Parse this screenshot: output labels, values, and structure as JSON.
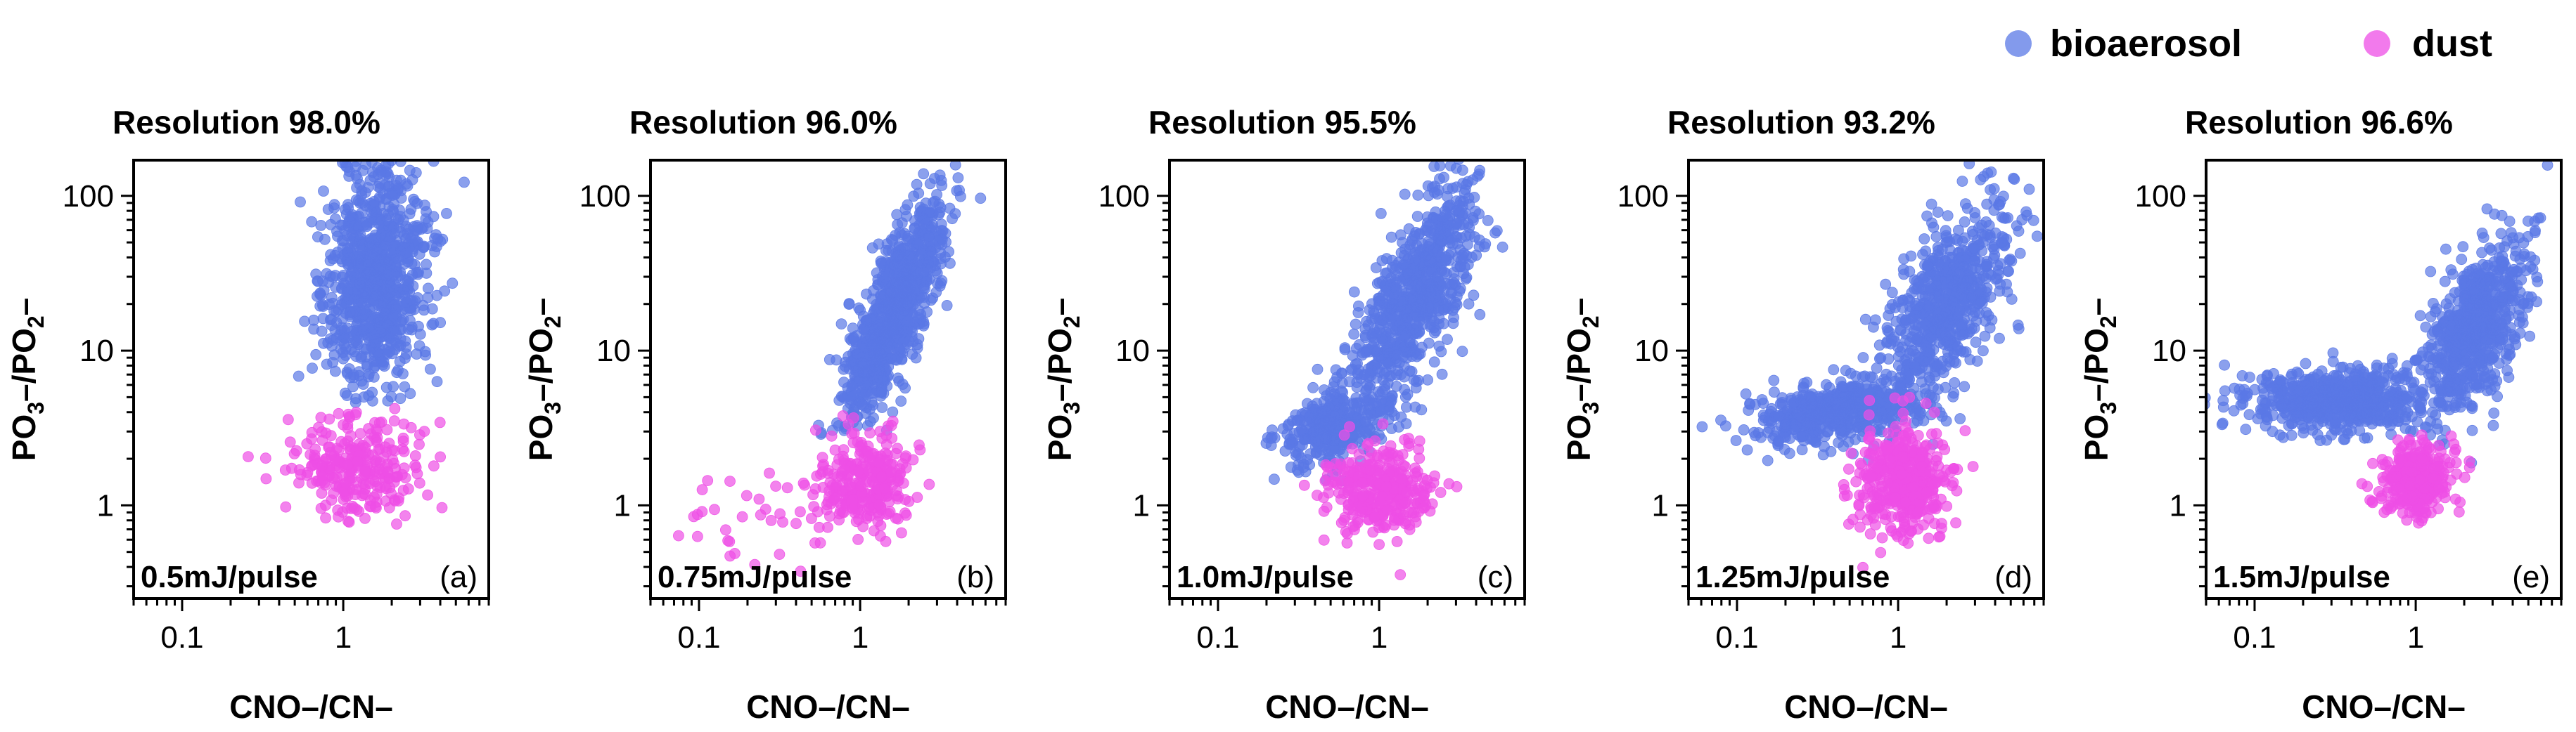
{
  "legend": {
    "items": [
      {
        "label": "bioaerosol",
        "color": "#5a78e6"
      },
      {
        "label": "dust",
        "color": "#ee4ee6"
      }
    ]
  },
  "chart_data": [
    {
      "type": "scatter",
      "letter": "(a)",
      "title": "Resolution 98.0%",
      "energy": "0.5mJ/pulse",
      "xlabel": "CNO–/CN–",
      "ylabel_main": "PO",
      "ylabel_sub1": "3",
      "ylabel_mid": "–/PO",
      "ylabel_sub2": "2",
      "ylabel_end": "–",
      "xscale": "log",
      "yscale": "log",
      "xlim": [
        0.05,
        8
      ],
      "ylim": [
        0.25,
        170
      ],
      "xticks": [
        0.1,
        1
      ],
      "xtick_labels": [
        "0.1",
        "1"
      ],
      "yticks": [
        1,
        10,
        100
      ],
      "ytick_labels": [
        "1",
        "10",
        "100"
      ],
      "series": [
        {
          "name": "bioaerosol",
          "n": 900,
          "clusters": [
            {
              "w": 1.0,
              "cx": 1.6,
              "cy": 30,
              "sx": 0.16,
              "sy": 0.38,
              "rho": 0.1,
              "ymin": 4.3
            }
          ]
        },
        {
          "name": "dust",
          "n": 280,
          "clusters": [
            {
              "w": 1.0,
              "cx": 1.25,
              "cy": 1.7,
              "sx": 0.2,
              "sy": 0.16,
              "rho": 0.0,
              "ymax": 4.3
            }
          ]
        }
      ]
    },
    {
      "type": "scatter",
      "letter": "(b)",
      "title": "Resolution 96.0%",
      "energy": "0.75mJ/pulse",
      "xlabel": "CNO–/CN–",
      "ylabel_main": "PO",
      "ylabel_sub1": "3",
      "ylabel_mid": "–/PO",
      "ylabel_sub2": "2",
      "ylabel_end": "–",
      "xscale": "log",
      "yscale": "log",
      "xlim": [
        0.05,
        8
      ],
      "ylim": [
        0.25,
        170
      ],
      "xticks": [
        0.1,
        1
      ],
      "xtick_labels": [
        "0.1",
        "1"
      ],
      "yticks": [
        1,
        10,
        100
      ],
      "ytick_labels": [
        "1",
        "10",
        "100"
      ],
      "series": [
        {
          "name": "bioaerosol",
          "n": 900,
          "clusters": [
            {
              "w": 1.0,
              "cx": 1.6,
              "cy": 18,
              "sx": 0.17,
              "sy": 0.38,
              "rho": 0.8,
              "ymin": 2.5
            }
          ]
        },
        {
          "name": "dust",
          "n": 320,
          "clusters": [
            {
              "w": 0.85,
              "cx": 1.1,
              "cy": 1.4,
              "sx": 0.14,
              "sy": 0.16,
              "rho": 0.0
            },
            {
              "w": 0.15,
              "cx": 0.3,
              "cy": 0.9,
              "sx": 0.3,
              "sy": 0.15,
              "rho": 0.0
            }
          ]
        }
      ]
    },
    {
      "type": "scatter",
      "letter": "(c)",
      "title": "Resolution 95.5%",
      "energy": "1.0mJ/pulse",
      "xlabel": "CNO–/CN–",
      "ylabel_main": "PO",
      "ylabel_sub1": "3",
      "ylabel_mid": "–/PO",
      "ylabel_sub2": "2",
      "ylabel_end": "–",
      "xscale": "log",
      "yscale": "log",
      "xlim": [
        0.05,
        8
      ],
      "ylim": [
        0.25,
        170
      ],
      "xticks": [
        0.1,
        1
      ],
      "xtick_labels": [
        "0.1",
        "1"
      ],
      "yticks": [
        1,
        10,
        100
      ],
      "ytick_labels": [
        "1",
        "10",
        "100"
      ],
      "series": [
        {
          "name": "bioaerosol",
          "n": 1100,
          "clusters": [
            {
              "w": 0.7,
              "cx": 1.7,
              "cy": 22,
              "sx": 0.2,
              "sy": 0.38,
              "rho": 0.7
            },
            {
              "w": 0.3,
              "cx": 0.5,
              "cy": 3.2,
              "sx": 0.15,
              "sy": 0.12,
              "rho": 0.3
            }
          ]
        },
        {
          "name": "dust",
          "n": 330,
          "clusters": [
            {
              "w": 1.0,
              "cx": 1.0,
              "cy": 1.3,
              "sx": 0.17,
              "sy": 0.14,
              "rho": 0.0
            }
          ]
        }
      ]
    },
    {
      "type": "scatter",
      "letter": "(d)",
      "title": "Resolution 93.2%",
      "energy": "1.25mJ/pulse",
      "xlabel": "CNO–/CN–",
      "ylabel_main": "PO",
      "ylabel_sub1": "3",
      "ylabel_mid": "–/PO",
      "ylabel_sub2": "2",
      "ylabel_end": "–",
      "xscale": "log",
      "yscale": "log",
      "xlim": [
        0.05,
        8
      ],
      "ylim": [
        0.25,
        170
      ],
      "xticks": [
        0.1,
        1
      ],
      "xtick_labels": [
        "0.1",
        "1"
      ],
      "yticks": [
        1,
        10,
        100
      ],
      "ytick_labels": [
        "1",
        "10",
        "100"
      ],
      "series": [
        {
          "name": "bioaerosol",
          "n": 1200,
          "clusters": [
            {
              "w": 0.55,
              "cx": 2.0,
              "cy": 20,
              "sx": 0.2,
              "sy": 0.32,
              "rho": 0.6
            },
            {
              "w": 0.45,
              "cx": 0.4,
              "cy": 4.0,
              "sx": 0.25,
              "sy": 0.1,
              "rho": 0.35
            }
          ]
        },
        {
          "name": "dust",
          "n": 420,
          "clusters": [
            {
              "w": 1.0,
              "cx": 1.1,
              "cy": 1.5,
              "sx": 0.14,
              "sy": 0.17,
              "rho": 0.0
            }
          ]
        }
      ]
    },
    {
      "type": "scatter",
      "letter": "(e)",
      "title": "Resolution 96.6%",
      "energy": "1.5mJ/pulse",
      "xlabel": "CNO–/CN–",
      "ylabel_main": "PO",
      "ylabel_sub1": "3",
      "ylabel_mid": "–/PO",
      "ylabel_sub2": "2",
      "ylabel_end": "–",
      "xscale": "log",
      "yscale": "log",
      "xlim": [
        0.05,
        8
      ],
      "ylim": [
        0.25,
        170
      ],
      "xticks": [
        0.1,
        1
      ],
      "xtick_labels": [
        "0.1",
        "1"
      ],
      "yticks": [
        1,
        10,
        100
      ],
      "ytick_labels": [
        "1",
        "10",
        "100"
      ],
      "series": [
        {
          "name": "bioaerosol",
          "n": 1300,
          "clusters": [
            {
              "w": 0.5,
              "cx": 0.32,
              "cy": 4.8,
              "sx": 0.28,
              "sy": 0.1,
              "rho": 0.0
            },
            {
              "w": 0.5,
              "cx": 2.3,
              "cy": 14,
              "sx": 0.18,
              "sy": 0.28,
              "rho": 0.6
            }
          ]
        },
        {
          "name": "dust",
          "n": 300,
          "clusters": [
            {
              "w": 1.0,
              "cx": 1.0,
              "cy": 1.5,
              "sx": 0.12,
              "sy": 0.13,
              "rho": 0.0
            }
          ]
        }
      ]
    }
  ]
}
